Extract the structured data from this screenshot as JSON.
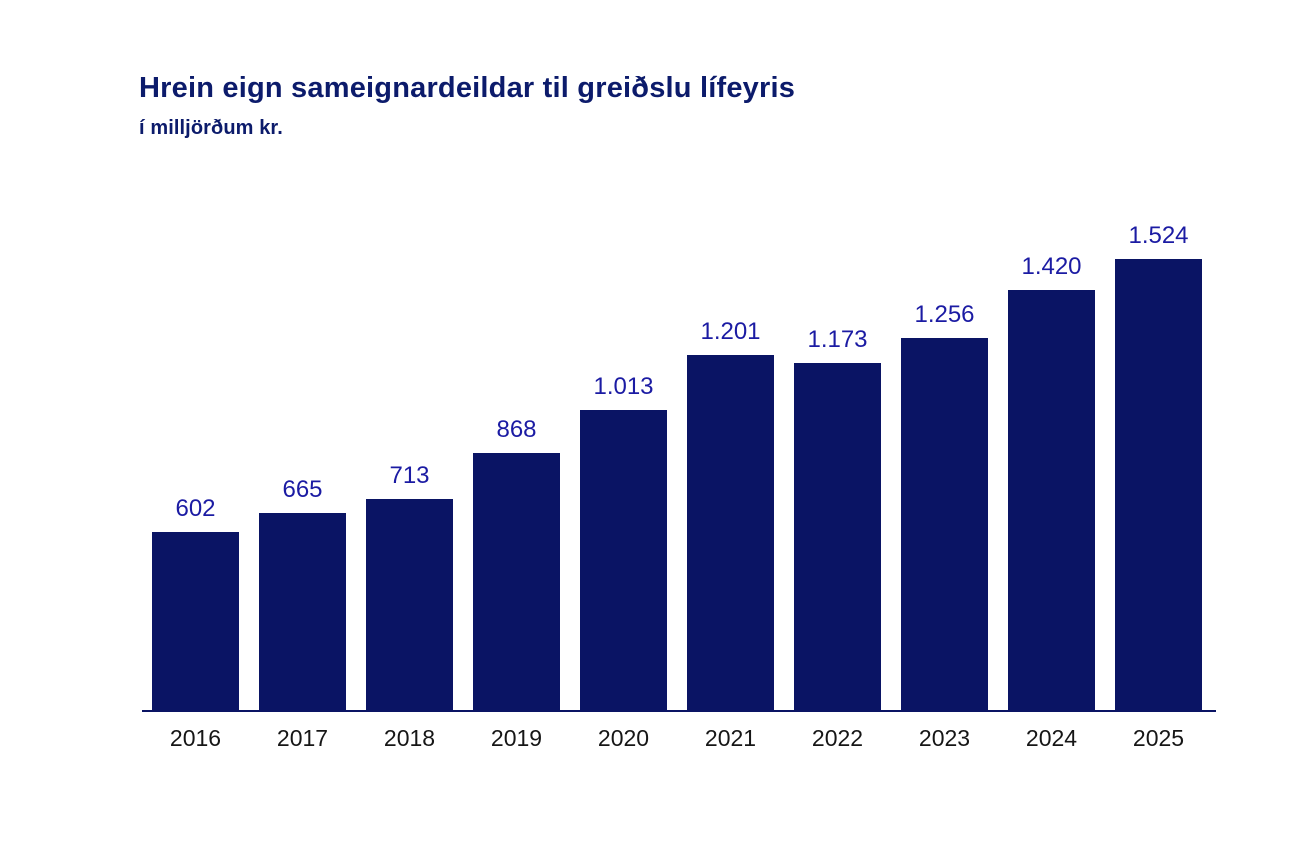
{
  "chart": {
    "title": "Hrein eign sameignardeildar til greiðslu lífeyris",
    "subtitle": "í milljörðum kr."
  },
  "chart_data": {
    "type": "bar",
    "title": "Hrein eign sameignardeildar til greiðslu lífeyris",
    "subtitle": "í milljörðum kr.",
    "categories": [
      "2016",
      "2017",
      "2018",
      "2019",
      "2020",
      "2021",
      "2022",
      "2023",
      "2024",
      "2025"
    ],
    "values": [
      602,
      665,
      713,
      868,
      1013,
      1201,
      1173,
      1256,
      1420,
      1524
    ],
    "value_labels": [
      "602",
      "665",
      "713",
      "868",
      "1.013",
      "1.201",
      "1.173",
      "1.256",
      "1.420",
      "1.524"
    ],
    "xlabel": "",
    "ylabel": "",
    "ylim": [
      0,
      1600
    ],
    "grid": false,
    "legend": false,
    "y_axis_visible": false,
    "colors": {
      "bar": "#0A1464",
      "title": "#0C1B6B",
      "value_label": "#1B1BA3",
      "axis_line": "#0A1464",
      "year_label": "#161616",
      "background": "#FFFFFF"
    }
  }
}
